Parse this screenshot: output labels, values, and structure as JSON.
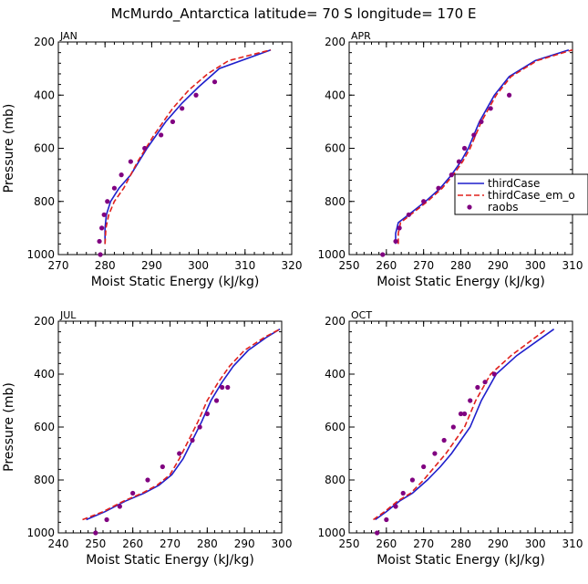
{
  "title": "McMurdo_Antarctica  latitude= 70 S longitude= 170 E",
  "colors": {
    "thirdCase": "#1f1fcc",
    "thirdCase_em_o": "#e0201c",
    "raobs": "#800080"
  },
  "legend": {
    "items": [
      "thirdCase",
      "thirdCase_em_o",
      "raobs"
    ]
  },
  "chart_data": [
    {
      "type": "line",
      "panel": "JAN",
      "xlabel": "Moist Static Energy (kJ/kg)",
      "ylabel": "Pressure (mb)",
      "xlim": [
        270,
        320
      ],
      "ylim": [
        1000,
        200
      ],
      "xticks": [
        270,
        280,
        290,
        300,
        310,
        320
      ],
      "yticks": [
        200,
        400,
        600,
        800,
        1000
      ],
      "series": [
        {
          "name": "thirdCase",
          "style": "line",
          "x": [
            280.0,
            280.0,
            280.3,
            281.2,
            283.0,
            285.5,
            289.0,
            293.0,
            296.5,
            300.0,
            304.5,
            315.5
          ],
          "y": [
            960,
            900,
            850,
            800,
            750,
            700,
            600,
            500,
            430,
            370,
            300,
            230
          ]
        },
        {
          "name": "thirdCase_em_o",
          "style": "dashed",
          "x": [
            280.0,
            280.2,
            280.8,
            282.0,
            284.0,
            287.0,
            290.5,
            294.5,
            298.0,
            302.0,
            306.5,
            315.5
          ],
          "y": [
            960,
            900,
            850,
            800,
            750,
            650,
            550,
            450,
            380,
            320,
            270,
            230
          ]
        },
        {
          "name": "raobs",
          "style": "markers",
          "x": [
            279.0,
            278.8,
            279.3,
            279.8,
            280.5,
            282.0,
            283.5,
            285.5,
            288.5,
            292.0,
            294.5,
            296.5,
            299.5,
            303.5
          ],
          "y": [
            1000,
            950,
            900,
            850,
            800,
            750,
            700,
            650,
            600,
            550,
            500,
            450,
            400,
            350
          ]
        }
      ]
    },
    {
      "type": "line",
      "panel": "APR",
      "xlabel": "Moist Static Energy (kJ/kg)",
      "ylabel": "",
      "xlim": [
        250,
        310
      ],
      "ylim": [
        1000,
        200
      ],
      "xticks": [
        250,
        260,
        270,
        280,
        290,
        300,
        310
      ],
      "yticks": [
        200,
        400,
        600,
        800,
        1000
      ],
      "series": [
        {
          "name": "thirdCase",
          "style": "line",
          "x": [
            262.5,
            262.5,
            263.2,
            266.0,
            270.5,
            274.5,
            277.5,
            280.0,
            282.0,
            285.0,
            289.0,
            293.0,
            300.0,
            309.0
          ],
          "y": [
            960,
            920,
            880,
            850,
            800,
            750,
            700,
            650,
            600,
            500,
            400,
            330,
            270,
            230
          ]
        },
        {
          "name": "thirdCase_em_o",
          "style": "dashed",
          "x": [
            263.2,
            263.2,
            263.8,
            266.5,
            271.0,
            275.0,
            278.0,
            280.5,
            282.5,
            285.5,
            289.5,
            293.5,
            300.5,
            310.0
          ],
          "y": [
            960,
            920,
            880,
            850,
            800,
            750,
            700,
            650,
            600,
            500,
            400,
            330,
            270,
            230
          ]
        },
        {
          "name": "raobs",
          "style": "markers",
          "x": [
            259.0,
            262.5,
            263.5,
            266.0,
            270.0,
            274.0,
            277.5,
            279.5,
            281.0,
            283.5,
            285.5,
            288.0,
            293.0
          ],
          "y": [
            1000,
            950,
            900,
            850,
            800,
            750,
            700,
            650,
            600,
            550,
            500,
            450,
            400
          ]
        }
      ]
    },
    {
      "type": "line",
      "panel": "JUL",
      "xlabel": "Moist Static Energy (kJ/kg)",
      "ylabel": "Pressure (mb)",
      "xlim": [
        240,
        300
      ],
      "ylim": [
        1000,
        200
      ],
      "xticks": [
        240,
        250,
        260,
        270,
        280,
        290,
        300
      ],
      "yticks": [
        200,
        400,
        600,
        800,
        1000
      ],
      "series": [
        {
          "name": "thirdCase",
          "style": "line",
          "x": [
            247.5,
            252.5,
            258.0,
            263.0,
            267.0,
            270.5,
            273.5,
            276.0,
            278.5,
            281.0,
            284.0,
            287.0,
            291.0,
            296.0,
            299.5
          ],
          "y": [
            950,
            920,
            880,
            850,
            820,
            780,
            720,
            650,
            580,
            500,
            430,
            370,
            310,
            260,
            230
          ]
        },
        {
          "name": "thirdCase_em_o",
          "style": "dashed",
          "x": [
            246.5,
            252.0,
            257.5,
            262.5,
            266.5,
            270.0,
            272.5,
            275.0,
            277.5,
            280.0,
            283.0,
            286.0,
            290.0,
            295.5,
            299.5
          ],
          "y": [
            950,
            920,
            880,
            850,
            820,
            780,
            720,
            650,
            580,
            500,
            430,
            370,
            310,
            260,
            230
          ]
        },
        {
          "name": "raobs",
          "style": "markers",
          "x": [
            250.0,
            253.0,
            256.5,
            260.0,
            264.0,
            268.0,
            272.5,
            276.0,
            278.0,
            280.0,
            282.5,
            284.0,
            285.5
          ],
          "y": [
            1000,
            950,
            900,
            850,
            800,
            750,
            700,
            650,
            600,
            550,
            500,
            450,
            450
          ]
        }
      ]
    },
    {
      "type": "line",
      "panel": "OCT",
      "xlabel": "Moist Static Energy (kJ/kg)",
      "ylabel": "",
      "xlim": [
        250,
        310
      ],
      "ylim": [
        1000,
        200
      ],
      "xticks": [
        250,
        260,
        270,
        280,
        290,
        300,
        310
      ],
      "yticks": [
        200,
        400,
        600,
        800,
        1000
      ],
      "series": [
        {
          "name": "thirdCase",
          "style": "line",
          "x": [
            257.0,
            260.0,
            263.5,
            267.0,
            271.0,
            274.5,
            277.5,
            280.0,
            282.5,
            285.5,
            289.5,
            295.0,
            305.0
          ],
          "y": [
            950,
            920,
            880,
            850,
            800,
            750,
            700,
            650,
            600,
            500,
            400,
            330,
            230
          ]
        },
        {
          "name": "thirdCase_em_o",
          "style": "dashed",
          "x": [
            256.5,
            259.5,
            263.0,
            266.5,
            270.0,
            273.0,
            276.0,
            278.5,
            281.0,
            284.0,
            288.0,
            293.5,
            303.0
          ],
          "y": [
            950,
            920,
            880,
            850,
            800,
            750,
            700,
            650,
            600,
            500,
            400,
            330,
            230
          ]
        },
        {
          "name": "raobs",
          "style": "markers",
          "x": [
            257.5,
            260.0,
            262.5,
            264.5,
            267.0,
            270.0,
            273.0,
            275.5,
            278.0,
            280.0,
            281.0,
            282.5,
            284.5,
            286.5,
            289.0
          ],
          "y": [
            1000,
            950,
            900,
            850,
            800,
            750,
            700,
            650,
            600,
            550,
            550,
            500,
            450,
            430,
            400
          ]
        }
      ]
    }
  ]
}
